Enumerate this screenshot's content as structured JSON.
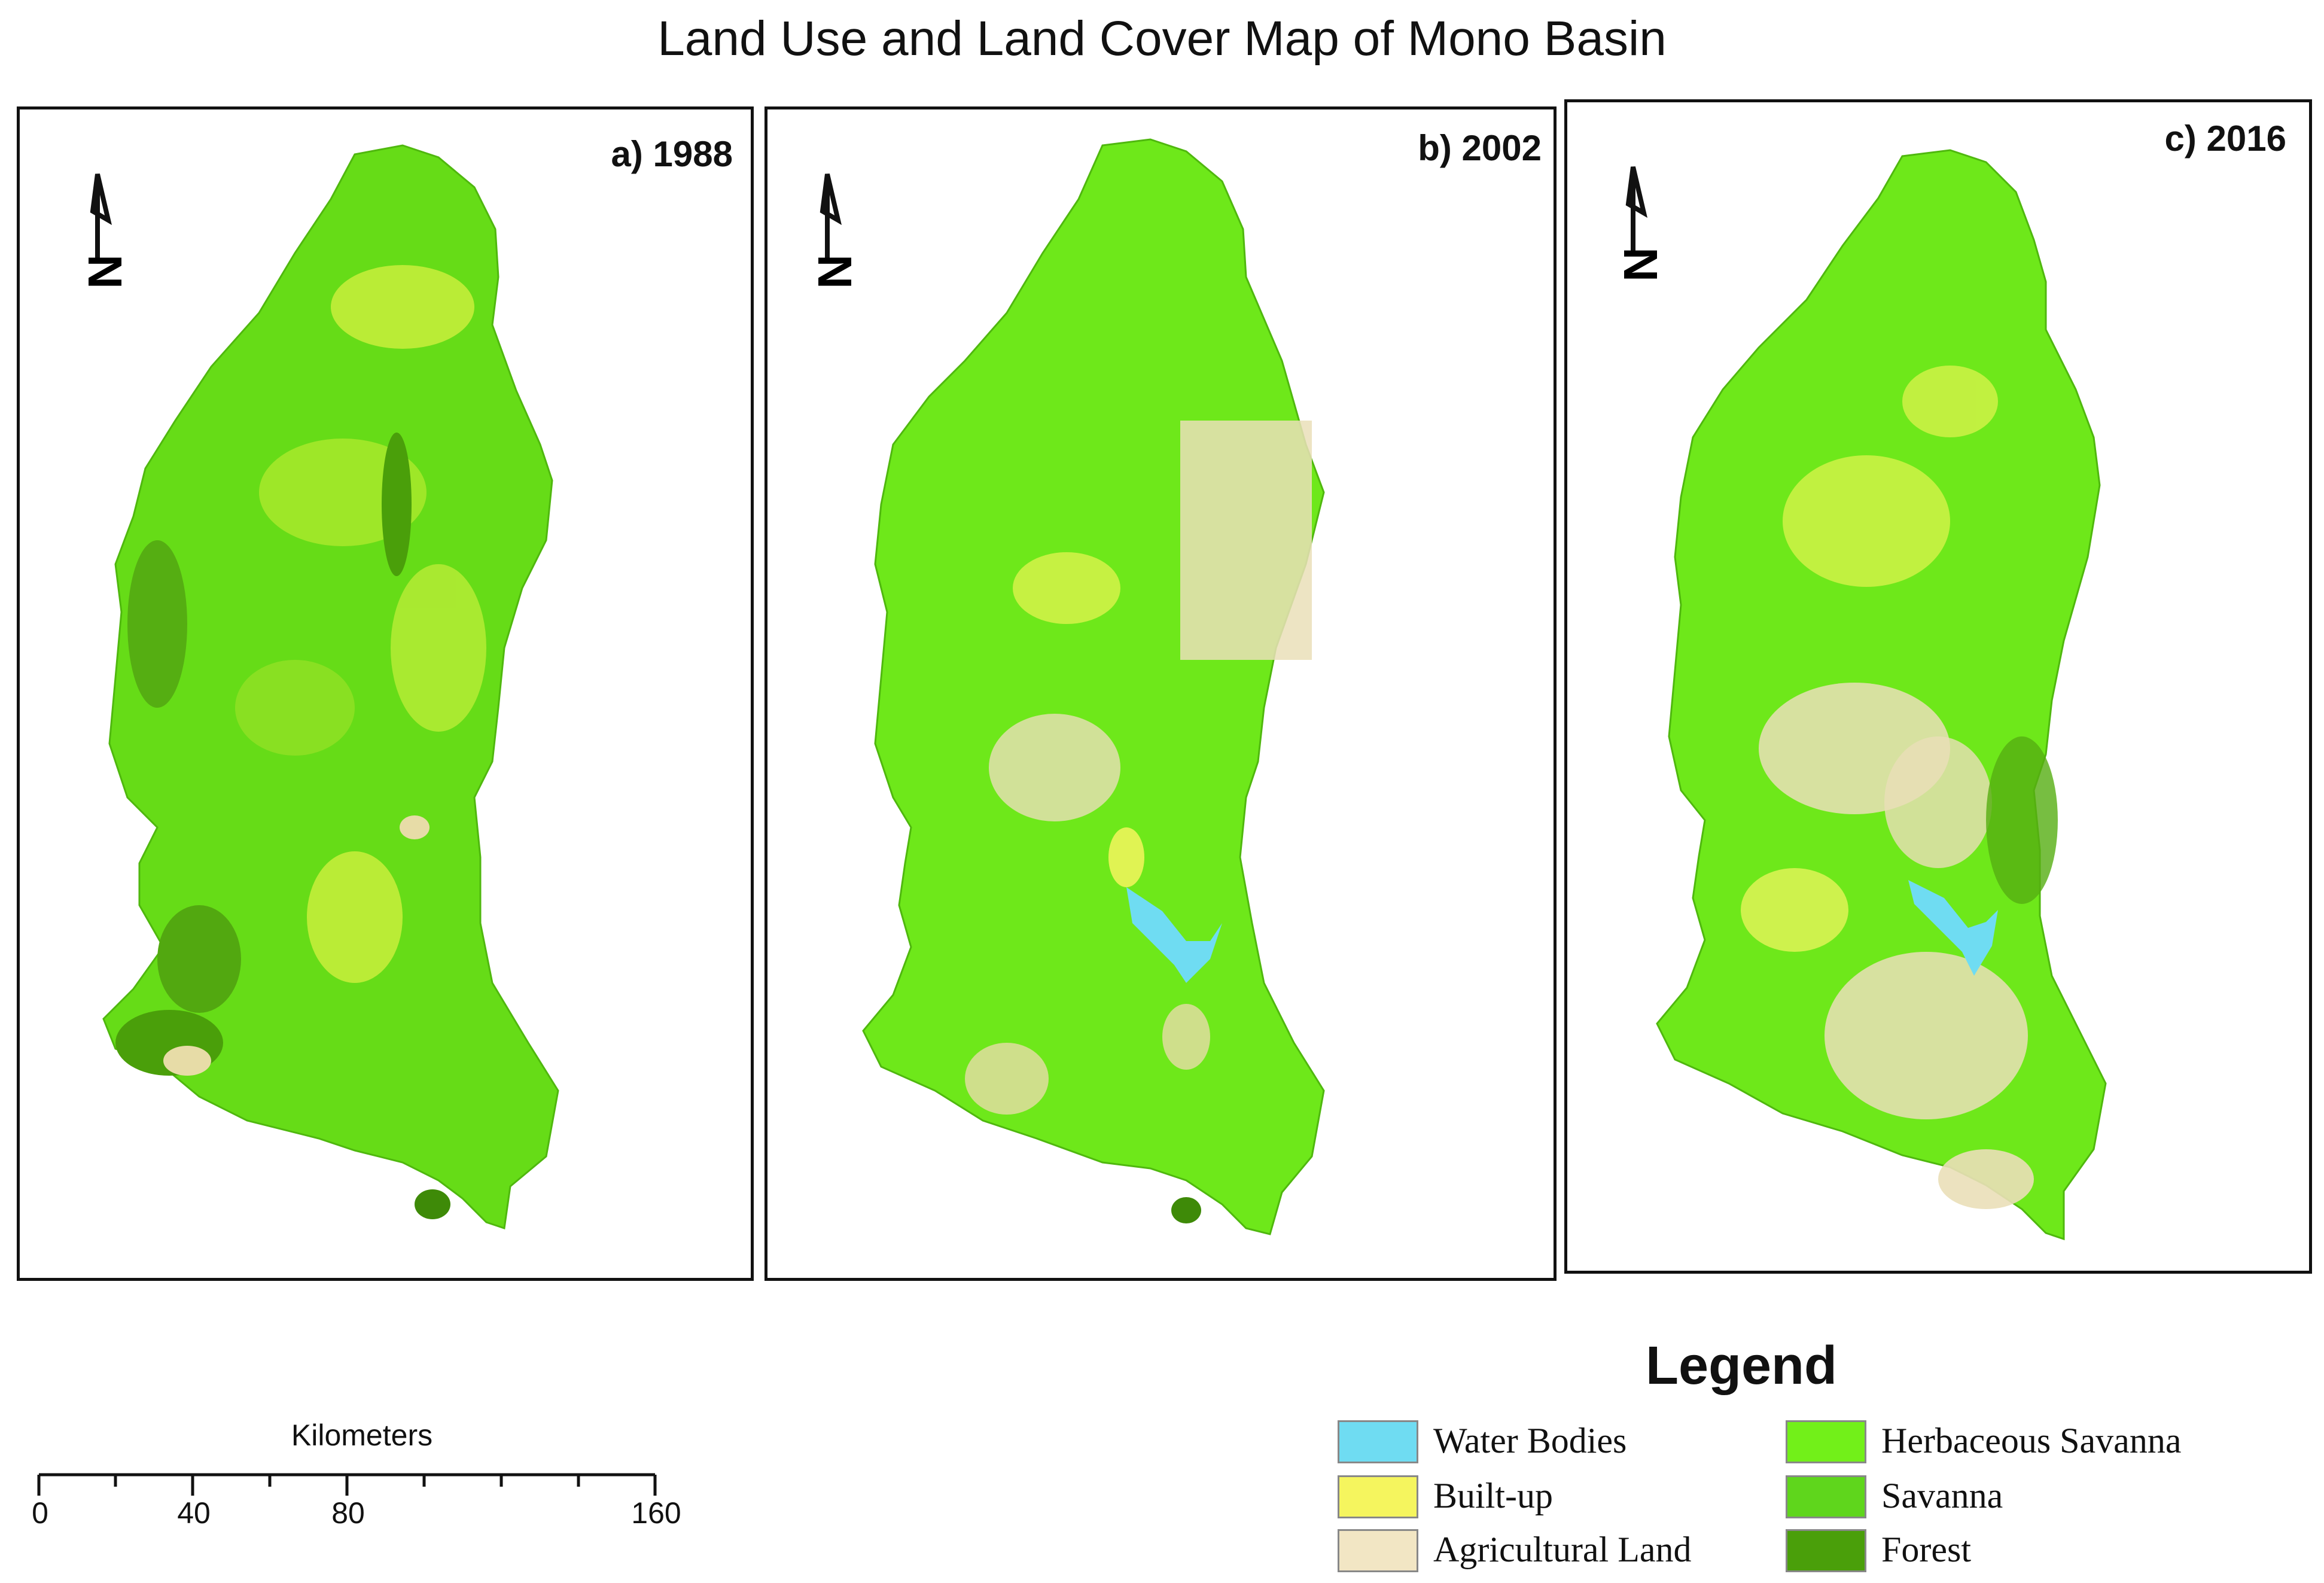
{
  "title": "Land Use and Land Cover Map of Mono Basin",
  "panels": [
    {
      "label": "a) 1988",
      "year": 1988
    },
    {
      "label": "b) 2002",
      "year": 2002
    },
    {
      "label": "c) 2016",
      "year": 2016
    }
  ],
  "north_arrow": {
    "label": "N"
  },
  "scale": {
    "title": "Kilometers",
    "ticks": [
      "0",
      "40",
      "80",
      "160"
    ]
  },
  "legend": {
    "title": "Legend",
    "items": [
      {
        "label": "Water Bodies",
        "color": "#6fdcf2"
      },
      {
        "label": "Built-up",
        "color": "#f5f55e"
      },
      {
        "label": "Agricultural Land",
        "color": "#f2e6c4"
      },
      {
        "label": "Herbaceous Savanna",
        "color": "#72f019"
      },
      {
        "label": "Savanna",
        "color": "#5fd61c"
      },
      {
        "label": "Forest",
        "color": "#4a9f0a"
      }
    ]
  }
}
